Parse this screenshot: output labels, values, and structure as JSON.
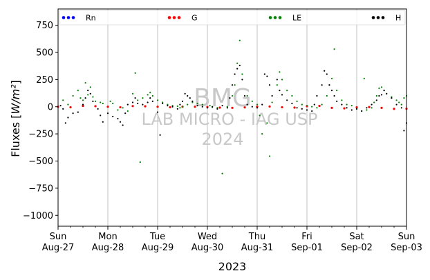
{
  "chart_data": {
    "type": "scatter",
    "title": "",
    "ylabel": "Fluxes [W/m²]",
    "xlabel": "2023",
    "ylim": [
      -1100,
      900
    ],
    "xlim": [
      "2023-08-27 00:00",
      "2023-09-03 00:00"
    ],
    "grid": "vertical lines at day boundaries",
    "legend_position": "top, spanning full width",
    "y_ticks": [
      750,
      500,
      250,
      0,
      -250,
      -500,
      -750,
      -1000
    ],
    "x_ticks": [
      {
        "weekday": "Sun",
        "date": "Aug-27",
        "day": 0
      },
      {
        "weekday": "Mon",
        "date": "Aug-28",
        "day": 1
      },
      {
        "weekday": "Tue",
        "date": "Aug-29",
        "day": 2
      },
      {
        "weekday": "Wed",
        "date": "Aug-30",
        "day": 3
      },
      {
        "weekday": "Thu",
        "date": "Aug-31",
        "day": 4
      },
      {
        "weekday": "Fri",
        "date": "Sep-01",
        "day": 5
      },
      {
        "weekday": "Sat",
        "date": "Sep-02",
        "day": 6
      },
      {
        "weekday": "Sun",
        "date": "Sep-03",
        "day": 7
      }
    ],
    "series": [
      {
        "name": "Rn",
        "color": "#0000ff",
        "points": []
      },
      {
        "name": "G",
        "color": "#ff0000",
        "points": [
          [
            0.0,
            0
          ],
          [
            0.25,
            -5
          ],
          [
            0.5,
            8
          ],
          [
            0.75,
            5
          ],
          [
            1.0,
            0
          ],
          [
            1.25,
            -5
          ],
          [
            1.5,
            6
          ],
          [
            1.75,
            4
          ],
          [
            2.0,
            0
          ],
          [
            2.25,
            -5
          ],
          [
            2.5,
            0
          ],
          [
            2.75,
            0
          ],
          [
            3.0,
            -3
          ],
          [
            3.25,
            -8
          ],
          [
            3.5,
            -10
          ],
          [
            3.75,
            -6
          ],
          [
            4.0,
            0
          ],
          [
            4.25,
            2
          ],
          [
            4.5,
            -5
          ],
          [
            4.75,
            -8
          ],
          [
            5.0,
            5
          ],
          [
            5.25,
            8
          ],
          [
            5.5,
            -10
          ],
          [
            5.75,
            -15
          ],
          [
            6.0,
            -5
          ],
          [
            6.25,
            -3
          ],
          [
            6.5,
            -10
          ],
          [
            6.75,
            -20
          ],
          [
            7.0,
            -18
          ]
        ]
      },
      {
        "name": "LE",
        "color": "#008000",
        "points": [
          [
            0.1,
            60
          ],
          [
            0.2,
            20
          ],
          [
            0.3,
            100
          ],
          [
            0.4,
            150
          ],
          [
            0.45,
            80
          ],
          [
            0.5,
            60
          ],
          [
            0.55,
            220
          ],
          [
            0.6,
            110
          ],
          [
            0.65,
            180
          ],
          [
            0.7,
            90
          ],
          [
            0.75,
            50
          ],
          [
            0.85,
            40
          ],
          [
            0.9,
            30
          ],
          [
            1.05,
            50
          ],
          [
            1.1,
            30
          ],
          [
            1.2,
            -30
          ],
          [
            1.3,
            -10
          ],
          [
            1.4,
            -40
          ],
          [
            1.5,
            120
          ],
          [
            1.55,
            310
          ],
          [
            1.6,
            60
          ],
          [
            1.65,
            -510
          ],
          [
            1.7,
            80
          ],
          [
            1.8,
            110
          ],
          [
            1.85,
            130
          ],
          [
            1.9,
            100
          ],
          [
            2.0,
            60
          ],
          [
            2.1,
            40
          ],
          [
            2.2,
            20
          ],
          [
            2.3,
            10
          ],
          [
            2.4,
            5
          ],
          [
            2.45,
            -10
          ],
          [
            2.5,
            0
          ],
          [
            2.6,
            20
          ],
          [
            2.7,
            40
          ],
          [
            2.8,
            30
          ],
          [
            2.9,
            20
          ],
          [
            3.05,
            10
          ],
          [
            3.1,
            -5
          ],
          [
            3.2,
            -10
          ],
          [
            3.3,
            -615
          ],
          [
            3.4,
            0
          ],
          [
            3.5,
            100
          ],
          [
            3.55,
            200
          ],
          [
            3.6,
            400
          ],
          [
            3.65,
            610
          ],
          [
            3.7,
            300
          ],
          [
            3.8,
            100
          ],
          [
            3.9,
            50
          ],
          [
            4.0,
            20
          ],
          [
            4.05,
            -80
          ],
          [
            4.1,
            -250
          ],
          [
            4.2,
            -150
          ],
          [
            4.25,
            -455
          ],
          [
            4.3,
            40
          ],
          [
            4.4,
            200
          ],
          [
            4.45,
            320
          ],
          [
            4.5,
            250
          ],
          [
            4.6,
            150
          ],
          [
            4.7,
            100
          ],
          [
            4.8,
            50
          ],
          [
            4.9,
            20
          ],
          [
            5.0,
            10
          ],
          [
            5.1,
            0
          ],
          [
            5.2,
            -10
          ],
          [
            5.3,
            20
          ],
          [
            5.4,
            100
          ],
          [
            5.45,
            200
          ],
          [
            5.5,
            260
          ],
          [
            5.55,
            530
          ],
          [
            5.6,
            150
          ],
          [
            5.7,
            60
          ],
          [
            5.8,
            20
          ],
          [
            5.9,
            10
          ],
          [
            6.0,
            -20
          ],
          [
            6.1,
            -40
          ],
          [
            6.15,
            260
          ],
          [
            6.2,
            -30
          ],
          [
            6.3,
            -10
          ],
          [
            6.35,
            40
          ],
          [
            6.4,
            100
          ],
          [
            6.45,
            170
          ],
          [
            6.5,
            180
          ],
          [
            6.55,
            150
          ],
          [
            6.6,
            120
          ],
          [
            6.7,
            90
          ],
          [
            6.8,
            60
          ],
          [
            6.85,
            40
          ],
          [
            6.9,
            20
          ],
          [
            6.95,
            80
          ],
          [
            7.0,
            100
          ]
        ]
      },
      {
        "name": "H",
        "color": "#000000",
        "points": [
          [
            0.05,
            10
          ],
          [
            0.1,
            -20
          ],
          [
            0.15,
            -150
          ],
          [
            0.2,
            -100
          ],
          [
            0.3,
            -60
          ],
          [
            0.4,
            -50
          ],
          [
            0.5,
            20
          ],
          [
            0.55,
            80
          ],
          [
            0.6,
            150
          ],
          [
            0.65,
            120
          ],
          [
            0.7,
            50
          ],
          [
            0.8,
            -20
          ],
          [
            0.85,
            -80
          ],
          [
            0.9,
            -140
          ],
          [
            1.0,
            -60
          ],
          [
            1.1,
            -90
          ],
          [
            1.2,
            -110
          ],
          [
            1.25,
            -140
          ],
          [
            1.3,
            -170
          ],
          [
            1.35,
            -60
          ],
          [
            1.4,
            20
          ],
          [
            1.5,
            40
          ],
          [
            1.55,
            80
          ],
          [
            1.6,
            30
          ],
          [
            1.7,
            20
          ],
          [
            1.8,
            40
          ],
          [
            1.85,
            80
          ],
          [
            1.9,
            50
          ],
          [
            2.0,
            -50
          ],
          [
            2.05,
            -260
          ],
          [
            2.1,
            30
          ],
          [
            2.2,
            10
          ],
          [
            2.3,
            0
          ],
          [
            2.4,
            -20
          ],
          [
            2.45,
            20
          ],
          [
            2.5,
            50
          ],
          [
            2.55,
            120
          ],
          [
            2.6,
            100
          ],
          [
            2.65,
            80
          ],
          [
            2.7,
            50
          ],
          [
            2.8,
            10
          ],
          [
            2.9,
            0
          ],
          [
            3.0,
            -10
          ],
          [
            3.1,
            0
          ],
          [
            3.2,
            -20
          ],
          [
            3.3,
            10
          ],
          [
            3.4,
            -10
          ],
          [
            3.45,
            80
          ],
          [
            3.5,
            200
          ],
          [
            3.55,
            300
          ],
          [
            3.6,
            350
          ],
          [
            3.65,
            380
          ],
          [
            3.7,
            250
          ],
          [
            3.75,
            100
          ],
          [
            3.8,
            20
          ],
          [
            3.9,
            0
          ],
          [
            4.0,
            -10
          ],
          [
            4.1,
            20
          ],
          [
            4.15,
            300
          ],
          [
            4.2,
            280
          ],
          [
            4.25,
            200
          ],
          [
            4.3,
            100
          ],
          [
            4.4,
            250
          ],
          [
            4.45,
            150
          ],
          [
            4.5,
            110
          ],
          [
            4.6,
            60
          ],
          [
            4.7,
            30
          ],
          [
            4.8,
            -10
          ],
          [
            4.9,
            -20
          ],
          [
            5.0,
            -30
          ],
          [
            5.1,
            -40
          ],
          [
            5.15,
            20
          ],
          [
            5.2,
            100
          ],
          [
            5.3,
            200
          ],
          [
            5.35,
            330
          ],
          [
            5.4,
            300
          ],
          [
            5.45,
            200
          ],
          [
            5.5,
            150
          ],
          [
            5.55,
            100
          ],
          [
            5.6,
            50
          ],
          [
            5.7,
            20
          ],
          [
            5.8,
            -10
          ],
          [
            5.9,
            -30
          ],
          [
            6.0,
            -20
          ],
          [
            6.1,
            -40
          ],
          [
            6.2,
            -10
          ],
          [
            6.3,
            20
          ],
          [
            6.4,
            60
          ],
          [
            6.45,
            100
          ],
          [
            6.5,
            110
          ],
          [
            6.55,
            150
          ],
          [
            6.6,
            120
          ],
          [
            6.7,
            80
          ],
          [
            6.8,
            20
          ],
          [
            6.9,
            -10
          ],
          [
            6.95,
            -220
          ],
          [
            7.0,
            -150
          ]
        ]
      }
    ]
  },
  "watermark": {
    "line1": "BMG",
    "line2": "LAB MICRO - IAG USP",
    "line3": "2024"
  }
}
